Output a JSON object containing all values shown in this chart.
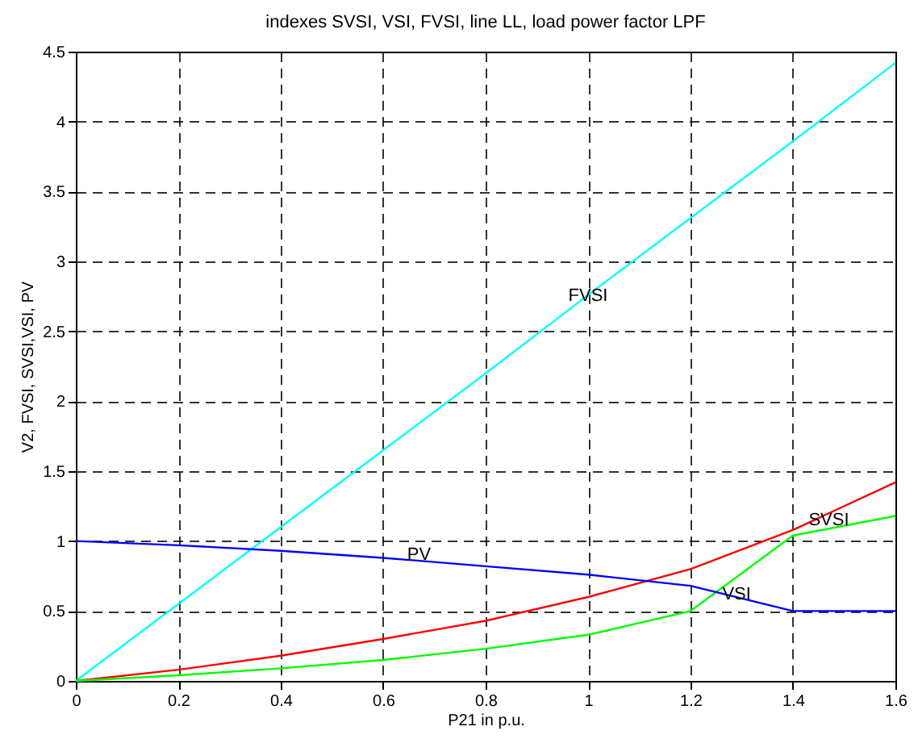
{
  "chart_data": {
    "type": "line",
    "title": "indexes SVSI, VSI, FVSI, line LL, load power factor LPF",
    "xlabel": "P21 in p.u.",
    "ylabel": "V2, FVSI, SVSI,VSI, PV",
    "x": [
      0,
      0.2,
      0.4,
      0.6,
      0.8,
      1.0,
      1.2,
      1.4,
      1.6
    ],
    "series": [
      {
        "color": "#00ffff",
        "values": [
          0,
          0.55,
          1.1,
          1.65,
          2.2,
          2.76,
          3.31,
          3.86,
          4.42
        ]
      },
      {
        "color": "#ff0000",
        "values": [
          0,
          0.08,
          0.18,
          0.3,
          0.43,
          0.6,
          0.8,
          1.08,
          1.42
        ]
      },
      {
        "color": "#00ff00",
        "values": [
          0,
          0.04,
          0.09,
          0.15,
          0.23,
          0.33,
          0.5,
          1.04,
          1.18
        ]
      },
      {
        "color": "#0000ff",
        "values": [
          1.0,
          0.97,
          0.93,
          0.88,
          0.82,
          0.76,
          0.68,
          0.5,
          0.5
        ]
      }
    ],
    "annotations": [
      {
        "text": "FVSI",
        "x": 1.0,
        "y": 2.75
      },
      {
        "text": "SVSI",
        "x": 1.47,
        "y": 1.15
      },
      {
        "text": "VSI",
        "x": 1.29,
        "y": 0.62
      },
      {
        "text": "PV",
        "x": 0.67,
        "y": 0.9
      }
    ],
    "xlim": [
      0,
      1.6
    ],
    "ylim": [
      0,
      4.5
    ],
    "xticks": [
      0,
      0.2,
      0.4,
      0.6,
      0.8,
      1,
      1.2,
      1.4,
      1.6
    ],
    "yticks": [
      0,
      0.5,
      1,
      1.5,
      2,
      2.5,
      3,
      3.5,
      4,
      4.5
    ],
    "grid": true,
    "legend": false,
    "line_style": "solid"
  }
}
